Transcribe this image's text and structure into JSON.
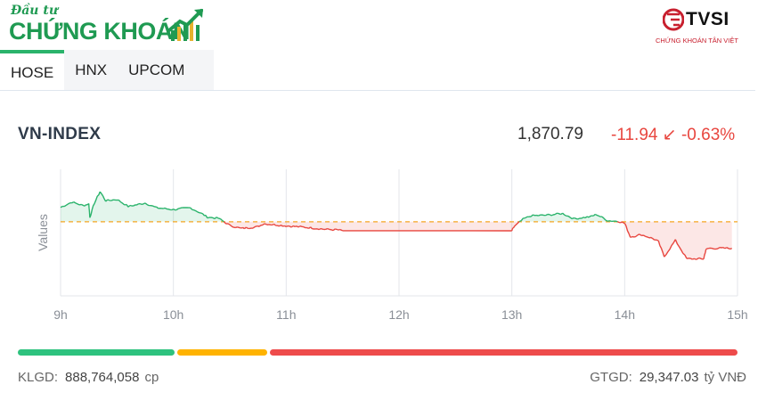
{
  "brand": {
    "small": "Đầu tư",
    "big": "CHỨNG KHOÁN",
    "colors": {
      "green": "#1f9a52",
      "gold": "#e7b22f"
    }
  },
  "broker": {
    "name": "TVSI",
    "subtitle": "CHỨNG KHOÁN TÂN VIỆT",
    "color": "#c8202f"
  },
  "tabs": [
    {
      "label": "HOSE",
      "active": true
    },
    {
      "label": "HNX",
      "active": false
    },
    {
      "label": "UPCOM",
      "active": false
    }
  ],
  "index": {
    "name": "VN-INDEX",
    "value": "1,870.79",
    "change": "-11.94",
    "direction_icon": "arrow-down-left-icon",
    "arrow": "↙",
    "percent": "-0.63%",
    "change_color": "#e8463f"
  },
  "chart_data": {
    "type": "line",
    "ylabel": "Values",
    "x_ticks": [
      "9h",
      "10h",
      "11h",
      "12h",
      "13h",
      "14h",
      "15h"
    ],
    "reference": 1882.73,
    "up_color": "#2ab36b",
    "down_color": "#e8463f",
    "ref_color": "#f5a623",
    "series": [
      {
        "x": [
          9.0,
          9.1,
          9.2,
          9.25,
          9.26,
          9.3,
          9.35,
          9.4,
          9.5,
          9.6,
          9.75,
          9.85,
          10.0,
          10.15,
          10.25,
          10.3,
          10.4,
          10.5,
          10.6,
          10.75,
          10.8,
          11.0,
          11.2,
          11.35,
          11.45,
          11.5,
          13.0,
          13.02,
          13.1,
          13.17,
          13.3,
          13.45,
          13.55,
          13.7,
          13.75,
          13.85,
          13.95,
          14.0,
          14.05,
          14.15,
          14.25,
          14.3,
          14.35,
          14.45,
          14.55,
          14.65,
          14.7,
          14.72,
          14.75,
          14.95
        ],
        "y": [
          1886.0,
          1887.2,
          1886.4,
          1886.8,
          1883.8,
          1887.0,
          1889.6,
          1887.5,
          1887.8,
          1886.2,
          1887.0,
          1885.9,
          1885.5,
          1885.9,
          1884.6,
          1883.8,
          1883.5,
          1881.9,
          1881.2,
          1881.6,
          1882.3,
          1881.8,
          1881.4,
          1881.0,
          1880.9,
          1880.7,
          1880.7,
          1881.6,
          1883.3,
          1884.1,
          1884.2,
          1884.6,
          1883.4,
          1883.9,
          1884.4,
          1883.0,
          1882.8,
          1882.4,
          1879.3,
          1879.8,
          1878.9,
          1878.2,
          1874.8,
          1878.5,
          1874.3,
          1874.3,
          1874.3,
          1876.4,
          1876.7,
          1876.7
        ]
      }
    ]
  },
  "breadth": {
    "segments": [
      {
        "name": "advancers",
        "share": 0.22,
        "color": "#2ec27e"
      },
      {
        "name": "unchanged",
        "share": 0.125,
        "color": "#ffb300"
      },
      {
        "name": "decliners",
        "share": 0.655,
        "color": "#ee4b4b"
      }
    ]
  },
  "stats": {
    "klgd_label": "KLGD:",
    "klgd_value": "888,764,058",
    "klgd_unit": "cp",
    "gtgd_label": "GTGD:",
    "gtgd_value": "29,347.03",
    "gtgd_unit": "tỷ VNĐ"
  }
}
